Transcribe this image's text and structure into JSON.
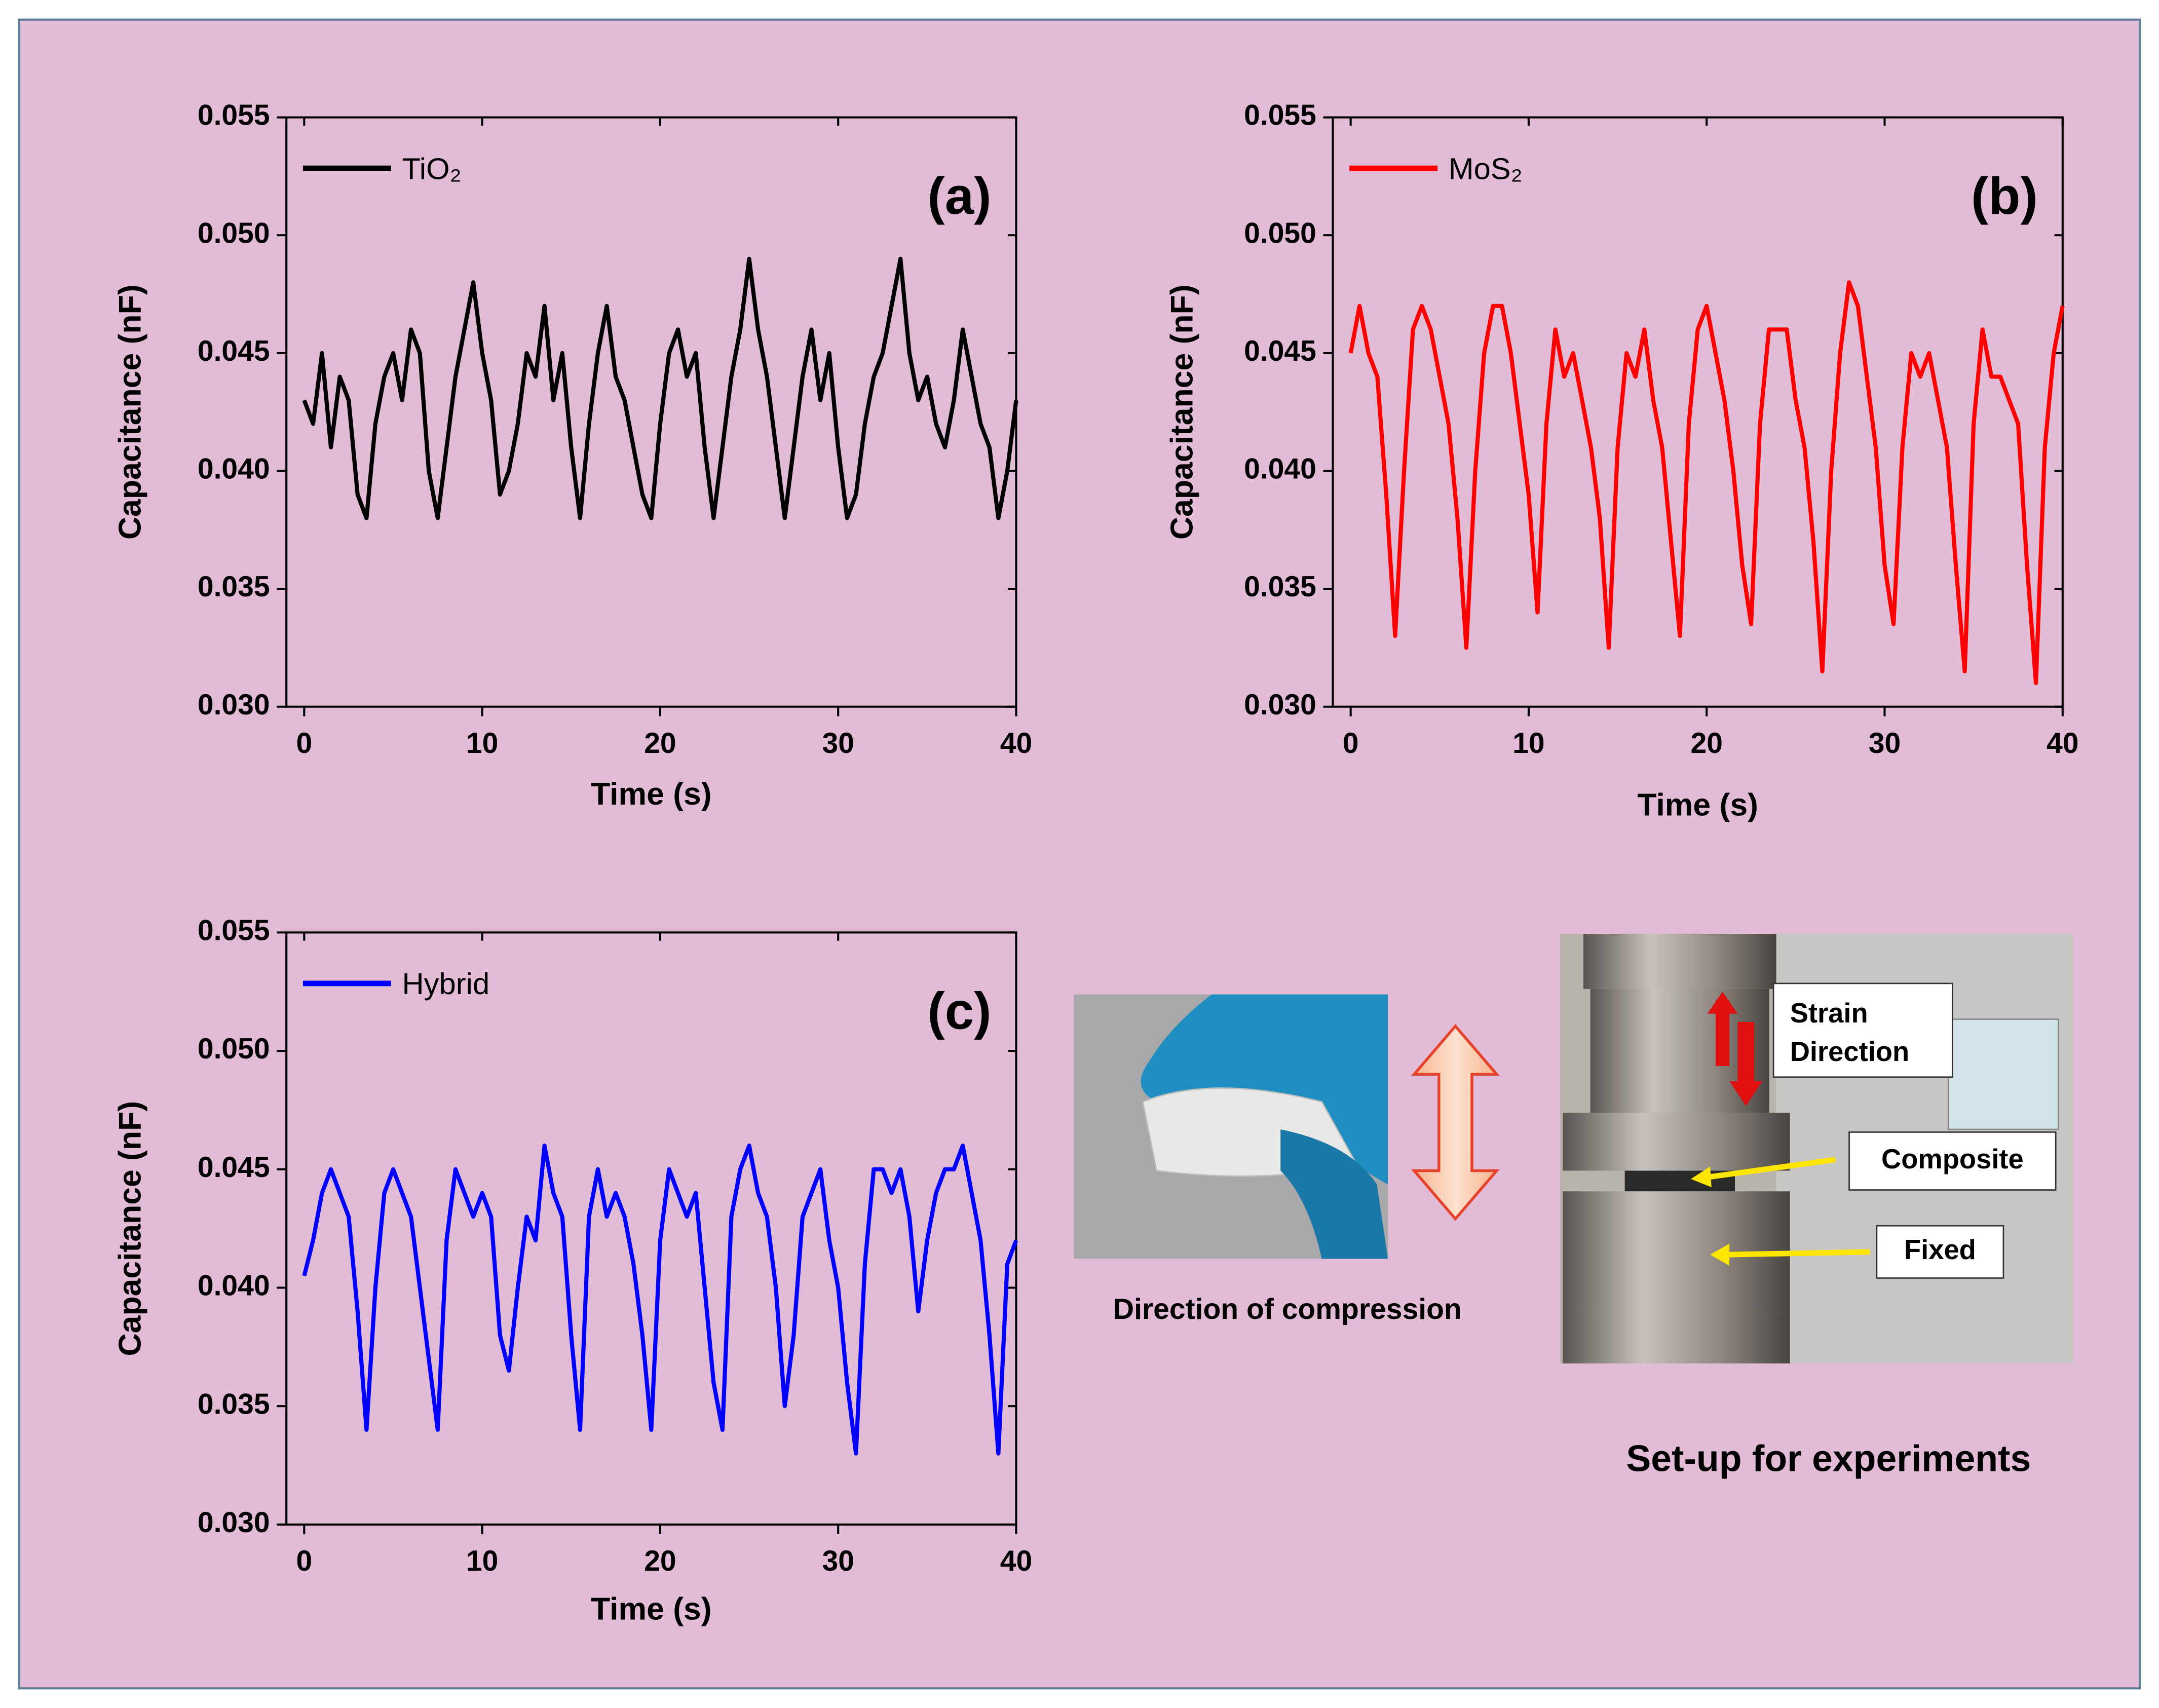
{
  "chart_data": [
    {
      "type": "line",
      "panel_label": "(a)",
      "xlabel": "Time (s)",
      "ylabel": "Capacitance (nF)",
      "xlim": [
        -1,
        40
      ],
      "ylim": [
        0.03,
        0.055
      ],
      "xticks": [
        0,
        10,
        20,
        30,
        40
      ],
      "yticks": [
        {
          "value": 0.03,
          "label": "0.030"
        },
        0.035,
        {
          "value": 0.04,
          "label": "0.040"
        },
        0.045,
        {
          "value": 0.05,
          "label": "0.050"
        },
        0.055
      ],
      "legend": "upper left",
      "x": [
        0,
        0.5,
        1,
        1.5,
        2,
        2.5,
        3,
        3.5,
        4,
        4.5,
        5,
        5.5,
        6,
        6.5,
        7,
        7.5,
        8,
        8.5,
        9,
        9.5,
        10,
        10.5,
        11,
        11.5,
        12,
        12.5,
        13,
        13.5,
        14,
        14.5,
        15,
        15.5,
        16,
        16.5,
        17,
        17.5,
        18,
        18.5,
        19,
        19.5,
        20,
        20.5,
        21,
        21.5,
        22,
        22.5,
        23,
        23.5,
        24,
        24.5,
        25,
        25.5,
        26,
        26.5,
        27,
        27.5,
        28,
        28.5,
        29,
        29.5,
        30,
        30.5,
        31,
        31.5,
        32,
        32.5,
        33,
        33.5,
        34,
        34.5,
        35,
        35.5,
        36,
        36.5,
        37,
        37.5,
        38,
        38.5,
        39,
        39.5,
        40
      ],
      "series": [
        {
          "name": "TiO₂",
          "color": "#000000",
          "values": [
            0.043,
            0.042,
            0.045,
            0.041,
            0.044,
            0.043,
            0.039,
            0.038,
            0.042,
            0.044,
            0.045,
            0.043,
            0.046,
            0.045,
            0.04,
            0.038,
            0.041,
            0.044,
            0.046,
            0.048,
            0.045,
            0.043,
            0.039,
            0.04,
            0.042,
            0.045,
            0.044,
            0.047,
            0.043,
            0.045,
            0.041,
            0.038,
            0.042,
            0.045,
            0.047,
            0.044,
            0.043,
            0.041,
            0.039,
            0.038,
            0.042,
            0.045,
            0.046,
            0.044,
            0.045,
            0.041,
            0.038,
            0.041,
            0.044,
            0.046,
            0.049,
            0.046,
            0.044,
            0.041,
            0.038,
            0.041,
            0.044,
            0.046,
            0.043,
            0.045,
            0.041,
            0.038,
            0.039,
            0.042,
            0.044,
            0.045,
            0.047,
            0.049,
            0.045,
            0.043,
            0.044,
            0.042,
            0.041,
            0.043,
            0.046,
            0.044,
            0.042,
            0.041,
            0.038,
            0.04,
            0.043
          ]
        }
      ]
    },
    {
      "type": "line",
      "panel_label": "(b)",
      "xlabel": "Time (s)",
      "ylabel": "Capacitance (nF)",
      "xlim": [
        -1,
        40
      ],
      "ylim": [
        0.03,
        0.055
      ],
      "xticks": [
        0,
        10,
        20,
        30,
        40
      ],
      "yticks": [
        {
          "value": 0.03,
          "label": "0.030"
        },
        0.035,
        {
          "value": 0.04,
          "label": "0.040"
        },
        0.045,
        {
          "value": 0.05,
          "label": "0.050"
        },
        0.055
      ],
      "legend": "upper left",
      "x": [
        0,
        0.5,
        1,
        1.5,
        2,
        2.5,
        3,
        3.5,
        4,
        4.5,
        5,
        5.5,
        6,
        6.5,
        7,
        7.5,
        8,
        8.5,
        9,
        9.5,
        10,
        10.5,
        11,
        11.5,
        12,
        12.5,
        13,
        13.5,
        14,
        14.5,
        15,
        15.5,
        16,
        16.5,
        17,
        17.5,
        18,
        18.5,
        19,
        19.5,
        20,
        20.5,
        21,
        21.5,
        22,
        22.5,
        23,
        23.5,
        24,
        24.5,
        25,
        25.5,
        26,
        26.5,
        27,
        27.5,
        28,
        28.5,
        29,
        29.5,
        30,
        30.5,
        31,
        31.5,
        32,
        32.5,
        33,
        33.5,
        34,
        34.5,
        35,
        35.5,
        36,
        36.5,
        37,
        37.5,
        38,
        38.5,
        39,
        39.5,
        40
      ],
      "series": [
        {
          "name": "MoS₂",
          "color": "#ff0000",
          "values": [
            0.045,
            0.047,
            0.045,
            0.044,
            0.039,
            0.033,
            0.04,
            0.046,
            0.047,
            0.046,
            0.044,
            0.042,
            0.038,
            0.0325,
            0.04,
            0.045,
            0.047,
            0.047,
            0.045,
            0.042,
            0.039,
            0.034,
            0.042,
            0.046,
            0.044,
            0.045,
            0.043,
            0.041,
            0.038,
            0.0325,
            0.041,
            0.045,
            0.044,
            0.046,
            0.043,
            0.041,
            0.037,
            0.033,
            0.042,
            0.046,
            0.047,
            0.045,
            0.043,
            0.04,
            0.036,
            0.0335,
            0.042,
            0.046,
            0.046,
            0.046,
            0.043,
            0.041,
            0.037,
            0.0315,
            0.04,
            0.045,
            0.048,
            0.047,
            0.044,
            0.041,
            0.036,
            0.0335,
            0.041,
            0.045,
            0.044,
            0.045,
            0.043,
            0.041,
            0.036,
            0.0315,
            0.042,
            0.046,
            0.044,
            0.044,
            0.043,
            0.042,
            0.036,
            0.031,
            0.041,
            0.045,
            0.047
          ]
        }
      ]
    },
    {
      "type": "line",
      "panel_label": "(c)",
      "xlabel": "Time (s)",
      "ylabel": "Capacitance (nF)",
      "xlim": [
        -1,
        40
      ],
      "ylim": [
        0.03,
        0.055
      ],
      "xticks": [
        0,
        10,
        20,
        30,
        40
      ],
      "yticks": [
        {
          "value": 0.03,
          "label": "0.030"
        },
        0.035,
        {
          "value": 0.04,
          "label": "0.040"
        },
        0.045,
        {
          "value": 0.05,
          "label": "0.050"
        },
        0.055
      ],
      "legend": "upper left",
      "x": [
        0,
        0.5,
        1,
        1.5,
        2,
        2.5,
        3,
        3.5,
        4,
        4.5,
        5,
        5.5,
        6,
        6.5,
        7,
        7.5,
        8,
        8.5,
        9,
        9.5,
        10,
        10.5,
        11,
        11.5,
        12,
        12.5,
        13,
        13.5,
        14,
        14.5,
        15,
        15.5,
        16,
        16.5,
        17,
        17.5,
        18,
        18.5,
        19,
        19.5,
        20,
        20.5,
        21,
        21.5,
        22,
        22.5,
        23,
        23.5,
        24,
        24.5,
        25,
        25.5,
        26,
        26.5,
        27,
        27.5,
        28,
        28.5,
        29,
        29.5,
        30,
        30.5,
        31,
        31.5,
        32,
        32.5,
        33,
        33.5,
        34,
        34.5,
        35,
        35.5,
        36,
        36.5,
        37,
        37.5,
        38,
        38.5,
        39,
        39.5,
        40
      ],
      "series": [
        {
          "name": "Hybrid",
          "color": "#0000ff",
          "values": [
            0.0405,
            0.042,
            0.044,
            0.045,
            0.044,
            0.043,
            0.039,
            0.034,
            0.04,
            0.044,
            0.045,
            0.044,
            0.043,
            0.04,
            0.037,
            0.034,
            0.042,
            0.045,
            0.044,
            0.043,
            0.044,
            0.043,
            0.038,
            0.0365,
            0.04,
            0.043,
            0.042,
            0.046,
            0.044,
            0.043,
            0.038,
            0.034,
            0.043,
            0.045,
            0.043,
            0.044,
            0.043,
            0.041,
            0.038,
            0.034,
            0.042,
            0.045,
            0.044,
            0.043,
            0.044,
            0.04,
            0.036,
            0.034,
            0.043,
            0.045,
            0.046,
            0.044,
            0.043,
            0.04,
            0.035,
            0.038,
            0.043,
            0.044,
            0.045,
            0.042,
            0.04,
            0.036,
            0.033,
            0.041,
            0.045,
            0.045,
            0.044,
            0.045,
            0.043,
            0.039,
            0.042,
            0.044,
            0.045,
            0.045,
            0.046,
            0.044,
            0.042,
            0.038,
            0.033,
            0.041,
            0.042
          ]
        }
      ]
    }
  ],
  "figure": {
    "compression_caption": "Direction of compression",
    "setup_caption": "Set-up for experiments",
    "photo_labels": [
      "Strain",
      "Direction",
      "Composite",
      "Fixed"
    ]
  }
}
